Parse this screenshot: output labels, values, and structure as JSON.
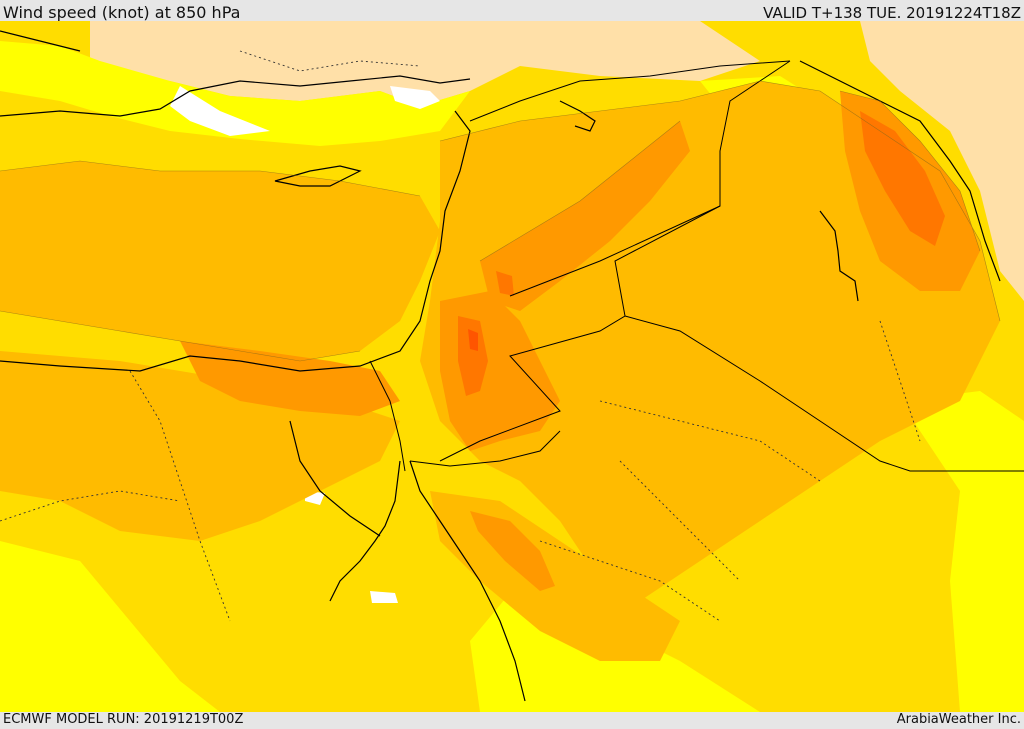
{
  "header": {
    "title": "Wind speed (knot) at 850 hPa",
    "valid_time": "VALID T+138 TUE. 20191224T18Z"
  },
  "footer": {
    "model_run": "ECMWF MODEL RUN: 20191219T00Z",
    "credit": "ArabiaWeather Inc."
  },
  "map": {
    "variable": "wind-speed-850hPa",
    "palette": {
      "lowest": "#ffffff",
      "very_low": "#ffe0a8",
      "low": "#ffff00",
      "moderate": "#ffdd00",
      "elevated": "#ffbb00",
      "high": "#ff9900",
      "very_high": "#ff7700",
      "max": "#ff5500",
      "borders": "#000000"
    }
  }
}
